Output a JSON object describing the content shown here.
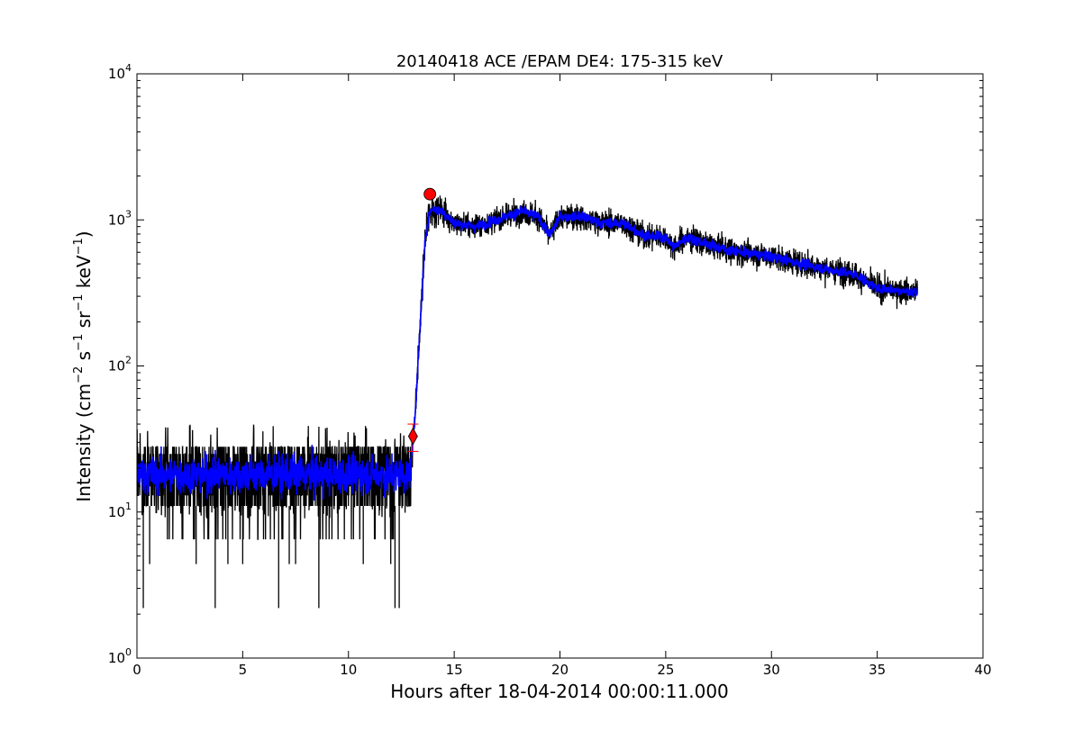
{
  "chart_data": {
    "type": "line",
    "title": "20140418 ACE /EPAM DE4: 175-315 keV",
    "xlabel": "Hours after 18-04-2014 00:00:11.000",
    "ylabel_parts": {
      "prefix": "Intensity (cm",
      "sup1": "−2",
      "mid1": " s",
      "sup2": "−1",
      "mid2": " sr",
      "sup3": "−1",
      "mid3": " keV",
      "sup4": "−1",
      "suffix": ")"
    },
    "xlim": [
      0,
      40
    ],
    "ylim": [
      1,
      10000
    ],
    "yscale": "log",
    "xticks": [
      0,
      5,
      10,
      15,
      20,
      25,
      30,
      35,
      40
    ],
    "xtick_labels": [
      "0",
      "5",
      "10",
      "15",
      "20",
      "25",
      "30",
      "35",
      "40"
    ],
    "yticks": [
      1,
      10,
      100,
      1000,
      10000
    ],
    "ytick_labels": [
      {
        "base": "10",
        "exp": "0"
      },
      {
        "base": "10",
        "exp": "1"
      },
      {
        "base": "10",
        "exp": "2"
      },
      {
        "base": "10",
        "exp": "3"
      },
      {
        "base": "10",
        "exp": "4"
      }
    ],
    "series": [
      {
        "role": "raw",
        "color": "#000000",
        "profile": {
          "x": [
            0,
            12.9,
            13.0,
            13.2,
            13.4,
            13.6,
            13.8,
            14.0,
            14.4,
            15.0,
            16.0,
            17.0,
            18.2,
            19.0,
            19.5,
            20.0,
            21.0,
            22.0,
            23.0,
            24.0,
            25.0,
            25.4,
            26.0,
            27.0,
            28.0,
            30.0,
            32.0,
            34.0,
            35.0,
            36.9
          ],
          "y": [
            18,
            18,
            25,
            60,
            200,
            650,
            1100,
            1200,
            1150,
            950,
            900,
            1000,
            1150,
            1050,
            780,
            1050,
            1050,
            950,
            950,
            780,
            760,
            650,
            760,
            680,
            620,
            560,
            480,
            420,
            340,
            320
          ]
        },
        "noise_floor_events": [
          {
            "x": 0.3,
            "y": 2.2
          },
          {
            "x": 3.7,
            "y": 2.2
          },
          {
            "x": 6.7,
            "y": 2.2
          },
          {
            "x": 8.6,
            "y": 2.2
          },
          {
            "x": 12.2,
            "y": 2.2
          },
          {
            "x": 12.4,
            "y": 2.2
          },
          {
            "x": 0.6,
            "y": 4.4
          },
          {
            "x": 2.8,
            "y": 4.4
          },
          {
            "x": 4.3,
            "y": 4.4
          },
          {
            "x": 5.0,
            "y": 4.4
          },
          {
            "x": 7.2,
            "y": 4.4
          },
          {
            "x": 7.5,
            "y": 4.4
          },
          {
            "x": 10.7,
            "y": 4.4
          },
          {
            "x": 12.0,
            "y": 4.4
          }
        ]
      },
      {
        "role": "smoothed",
        "color": "#0000ff",
        "profile": {
          "x": [
            0,
            12.9,
            13.0,
            13.2,
            13.4,
            13.6,
            13.8,
            14.0,
            14.4,
            15.0,
            16.0,
            17.0,
            18.2,
            19.0,
            19.5,
            20.0,
            21.0,
            22.0,
            23.0,
            24.0,
            25.0,
            25.4,
            26.0,
            27.0,
            28.0,
            30.0,
            32.0,
            34.0,
            35.0,
            36.9
          ],
          "y": [
            18,
            18,
            25,
            60,
            200,
            650,
            1100,
            1200,
            1150,
            950,
            900,
            1000,
            1150,
            1050,
            780,
            1050,
            1050,
            950,
            950,
            780,
            760,
            650,
            760,
            680,
            620,
            560,
            480,
            420,
            340,
            320
          ]
        }
      }
    ],
    "markers": [
      {
        "kind": "onset",
        "shape": "diamond",
        "color": "#ff0000",
        "x": 13.05,
        "y": 33,
        "err_low": 26,
        "err_high": 40
      },
      {
        "kind": "peak",
        "shape": "circle",
        "color": "#ff0000",
        "x": 13.85,
        "y": 1500
      }
    ],
    "grid": false
  }
}
